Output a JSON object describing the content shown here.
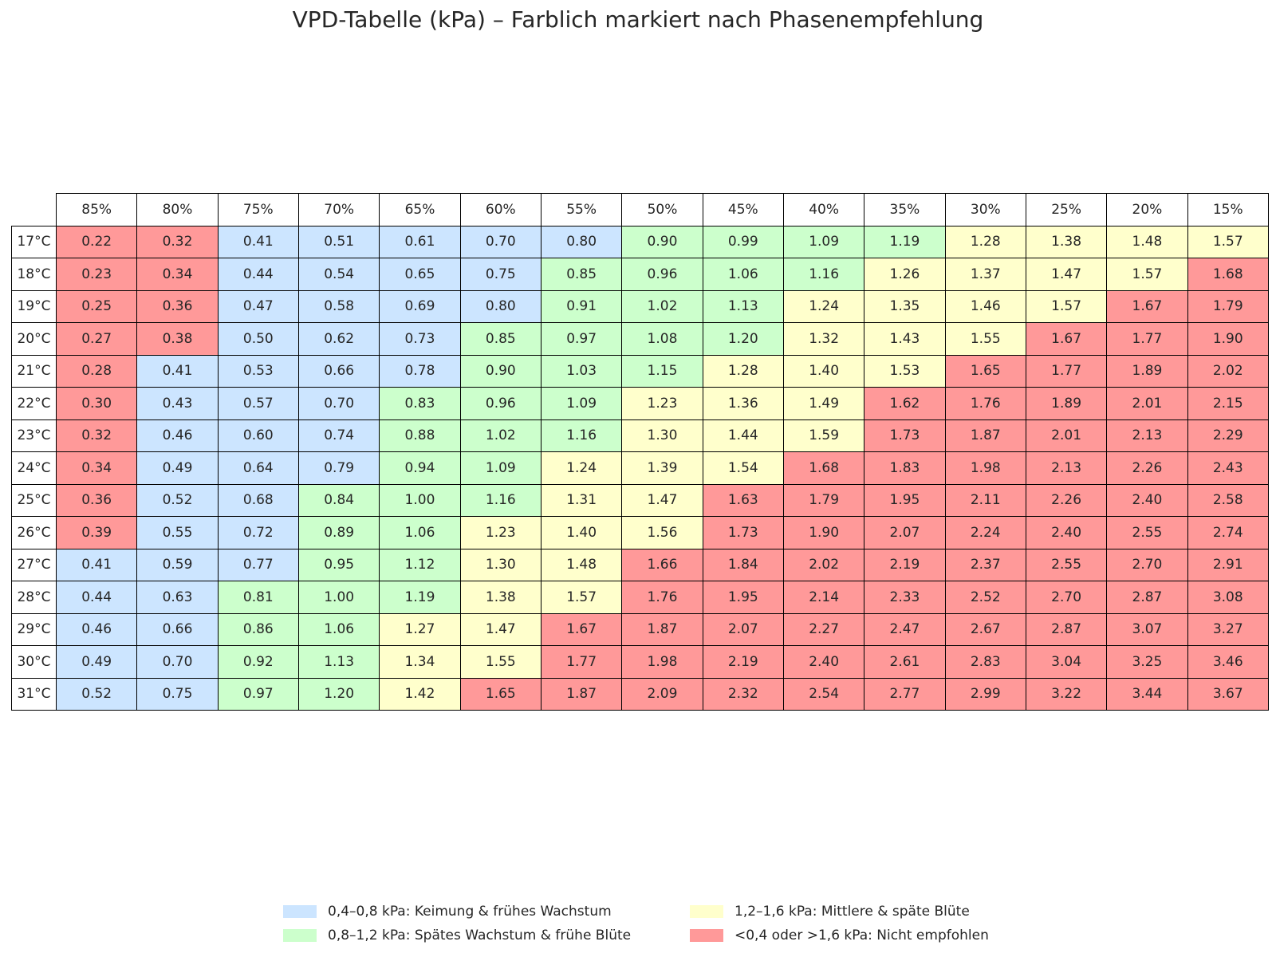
{
  "chart_data": {
    "type": "table",
    "title": "VPD-Tabelle (kPa) – Farblich markiert nach Phasenempfehlung",
    "columns": [
      "85%",
      "80%",
      "75%",
      "70%",
      "65%",
      "60%",
      "55%",
      "50%",
      "45%",
      "40%",
      "35%",
      "30%",
      "25%",
      "20%",
      "15%"
    ],
    "rows": [
      "17°C",
      "18°C",
      "19°C",
      "20°C",
      "21°C",
      "22°C",
      "23°C",
      "24°C",
      "25°C",
      "26°C",
      "27°C",
      "28°C",
      "29°C",
      "30°C",
      "31°C"
    ],
    "values": [
      [
        "0.22",
        "0.32",
        "0.41",
        "0.51",
        "0.61",
        "0.70",
        "0.80",
        "0.90",
        "0.99",
        "1.09",
        "1.19",
        "1.28",
        "1.38",
        "1.48",
        "1.57"
      ],
      [
        "0.23",
        "0.34",
        "0.44",
        "0.54",
        "0.65",
        "0.75",
        "0.85",
        "0.96",
        "1.06",
        "1.16",
        "1.26",
        "1.37",
        "1.47",
        "1.57",
        "1.68"
      ],
      [
        "0.25",
        "0.36",
        "0.47",
        "0.58",
        "0.69",
        "0.80",
        "0.91",
        "1.02",
        "1.13",
        "1.24",
        "1.35",
        "1.46",
        "1.57",
        "1.67",
        "1.79"
      ],
      [
        "0.27",
        "0.38",
        "0.50",
        "0.62",
        "0.73",
        "0.85",
        "0.97",
        "1.08",
        "1.20",
        "1.32",
        "1.43",
        "1.55",
        "1.67",
        "1.77",
        "1.90"
      ],
      [
        "0.28",
        "0.41",
        "0.53",
        "0.66",
        "0.78",
        "0.90",
        "1.03",
        "1.15",
        "1.28",
        "1.40",
        "1.53",
        "1.65",
        "1.77",
        "1.89",
        "2.02"
      ],
      [
        "0.30",
        "0.43",
        "0.57",
        "0.70",
        "0.83",
        "0.96",
        "1.09",
        "1.23",
        "1.36",
        "1.49",
        "1.62",
        "1.76",
        "1.89",
        "2.01",
        "2.15"
      ],
      [
        "0.32",
        "0.46",
        "0.60",
        "0.74",
        "0.88",
        "1.02",
        "1.16",
        "1.30",
        "1.44",
        "1.59",
        "1.73",
        "1.87",
        "2.01",
        "2.13",
        "2.29"
      ],
      [
        "0.34",
        "0.49",
        "0.64",
        "0.79",
        "0.94",
        "1.09",
        "1.24",
        "1.39",
        "1.54",
        "1.68",
        "1.83",
        "1.98",
        "2.13",
        "2.26",
        "2.43"
      ],
      [
        "0.36",
        "0.52",
        "0.68",
        "0.84",
        "1.00",
        "1.16",
        "1.31",
        "1.47",
        "1.63",
        "1.79",
        "1.95",
        "2.11",
        "2.26",
        "2.40",
        "2.58"
      ],
      [
        "0.39",
        "0.55",
        "0.72",
        "0.89",
        "1.06",
        "1.23",
        "1.40",
        "1.56",
        "1.73",
        "1.90",
        "2.07",
        "2.24",
        "2.40",
        "2.55",
        "2.74"
      ],
      [
        "0.41",
        "0.59",
        "0.77",
        "0.95",
        "1.12",
        "1.30",
        "1.48",
        "1.66",
        "1.84",
        "2.02",
        "2.19",
        "2.37",
        "2.55",
        "2.70",
        "2.91"
      ],
      [
        "0.44",
        "0.63",
        "0.81",
        "1.00",
        "1.19",
        "1.38",
        "1.57",
        "1.76",
        "1.95",
        "2.14",
        "2.33",
        "2.52",
        "2.70",
        "2.87",
        "3.08"
      ],
      [
        "0.46",
        "0.66",
        "0.86",
        "1.06",
        "1.27",
        "1.47",
        "1.67",
        "1.87",
        "2.07",
        "2.27",
        "2.47",
        "2.67",
        "2.87",
        "3.07",
        "3.27"
      ],
      [
        "0.49",
        "0.70",
        "0.92",
        "1.13",
        "1.34",
        "1.55",
        "1.77",
        "1.98",
        "2.19",
        "2.40",
        "2.61",
        "2.83",
        "3.04",
        "3.25",
        "3.46"
      ],
      [
        "0.52",
        "0.75",
        "0.97",
        "1.20",
        "1.42",
        "1.65",
        "1.87",
        "2.09",
        "2.32",
        "2.54",
        "2.77",
        "2.99",
        "3.22",
        "3.44",
        "3.67"
      ]
    ],
    "categories": [
      {
        "key": "blue",
        "color": "#cce5ff",
        "label": "0,4–0,8 kPa: Keimung & frühes Wachstum"
      },
      {
        "key": "green",
        "color": "#ccffcc",
        "label": "0,8–1,2 kPa: Spätes Wachstum & frühe Blüte"
      },
      {
        "key": "yellow",
        "color": "#ffffcc",
        "label": "1,2–1,6 kPa: Mittlere & späte Blüte"
      },
      {
        "key": "red",
        "color": "#ff9999",
        "label": "<0,4 oder >1,6 kPa: Nicht empfohlen"
      }
    ],
    "cell_categories": [
      [
        "red",
        "red",
        "blue",
        "blue",
        "blue",
        "blue",
        "blue",
        "green",
        "green",
        "green",
        "green",
        "yellow",
        "yellow",
        "yellow",
        "yellow"
      ],
      [
        "red",
        "red",
        "blue",
        "blue",
        "blue",
        "blue",
        "green",
        "green",
        "green",
        "green",
        "yellow",
        "yellow",
        "yellow",
        "yellow",
        "red"
      ],
      [
        "red",
        "red",
        "blue",
        "blue",
        "blue",
        "blue",
        "green",
        "green",
        "green",
        "yellow",
        "yellow",
        "yellow",
        "yellow",
        "red",
        "red"
      ],
      [
        "red",
        "red",
        "blue",
        "blue",
        "blue",
        "green",
        "green",
        "green",
        "green",
        "yellow",
        "yellow",
        "yellow",
        "red",
        "red",
        "red"
      ],
      [
        "red",
        "blue",
        "blue",
        "blue",
        "blue",
        "green",
        "green",
        "green",
        "yellow",
        "yellow",
        "yellow",
        "red",
        "red",
        "red",
        "red"
      ],
      [
        "red",
        "blue",
        "blue",
        "blue",
        "green",
        "green",
        "green",
        "yellow",
        "yellow",
        "yellow",
        "red",
        "red",
        "red",
        "red",
        "red"
      ],
      [
        "red",
        "blue",
        "blue",
        "blue",
        "green",
        "green",
        "green",
        "yellow",
        "yellow",
        "yellow",
        "red",
        "red",
        "red",
        "red",
        "red"
      ],
      [
        "red",
        "blue",
        "blue",
        "blue",
        "green",
        "green",
        "yellow",
        "yellow",
        "yellow",
        "red",
        "red",
        "red",
        "red",
        "red",
        "red"
      ],
      [
        "red",
        "blue",
        "blue",
        "green",
        "green",
        "green",
        "yellow",
        "yellow",
        "red",
        "red",
        "red",
        "red",
        "red",
        "red",
        "red"
      ],
      [
        "red",
        "blue",
        "blue",
        "green",
        "green",
        "yellow",
        "yellow",
        "yellow",
        "red",
        "red",
        "red",
        "red",
        "red",
        "red",
        "red"
      ],
      [
        "blue",
        "blue",
        "blue",
        "green",
        "green",
        "yellow",
        "yellow",
        "red",
        "red",
        "red",
        "red",
        "red",
        "red",
        "red",
        "red"
      ],
      [
        "blue",
        "blue",
        "green",
        "green",
        "green",
        "yellow",
        "yellow",
        "red",
        "red",
        "red",
        "red",
        "red",
        "red",
        "red",
        "red"
      ],
      [
        "blue",
        "blue",
        "green",
        "green",
        "yellow",
        "yellow",
        "red",
        "red",
        "red",
        "red",
        "red",
        "red",
        "red",
        "red",
        "red"
      ],
      [
        "blue",
        "blue",
        "green",
        "green",
        "yellow",
        "yellow",
        "red",
        "red",
        "red",
        "red",
        "red",
        "red",
        "red",
        "red",
        "red"
      ],
      [
        "blue",
        "blue",
        "green",
        "green",
        "yellow",
        "red",
        "red",
        "red",
        "red",
        "red",
        "red",
        "red",
        "red",
        "red",
        "red"
      ]
    ],
    "legend_position": "bottom"
  }
}
